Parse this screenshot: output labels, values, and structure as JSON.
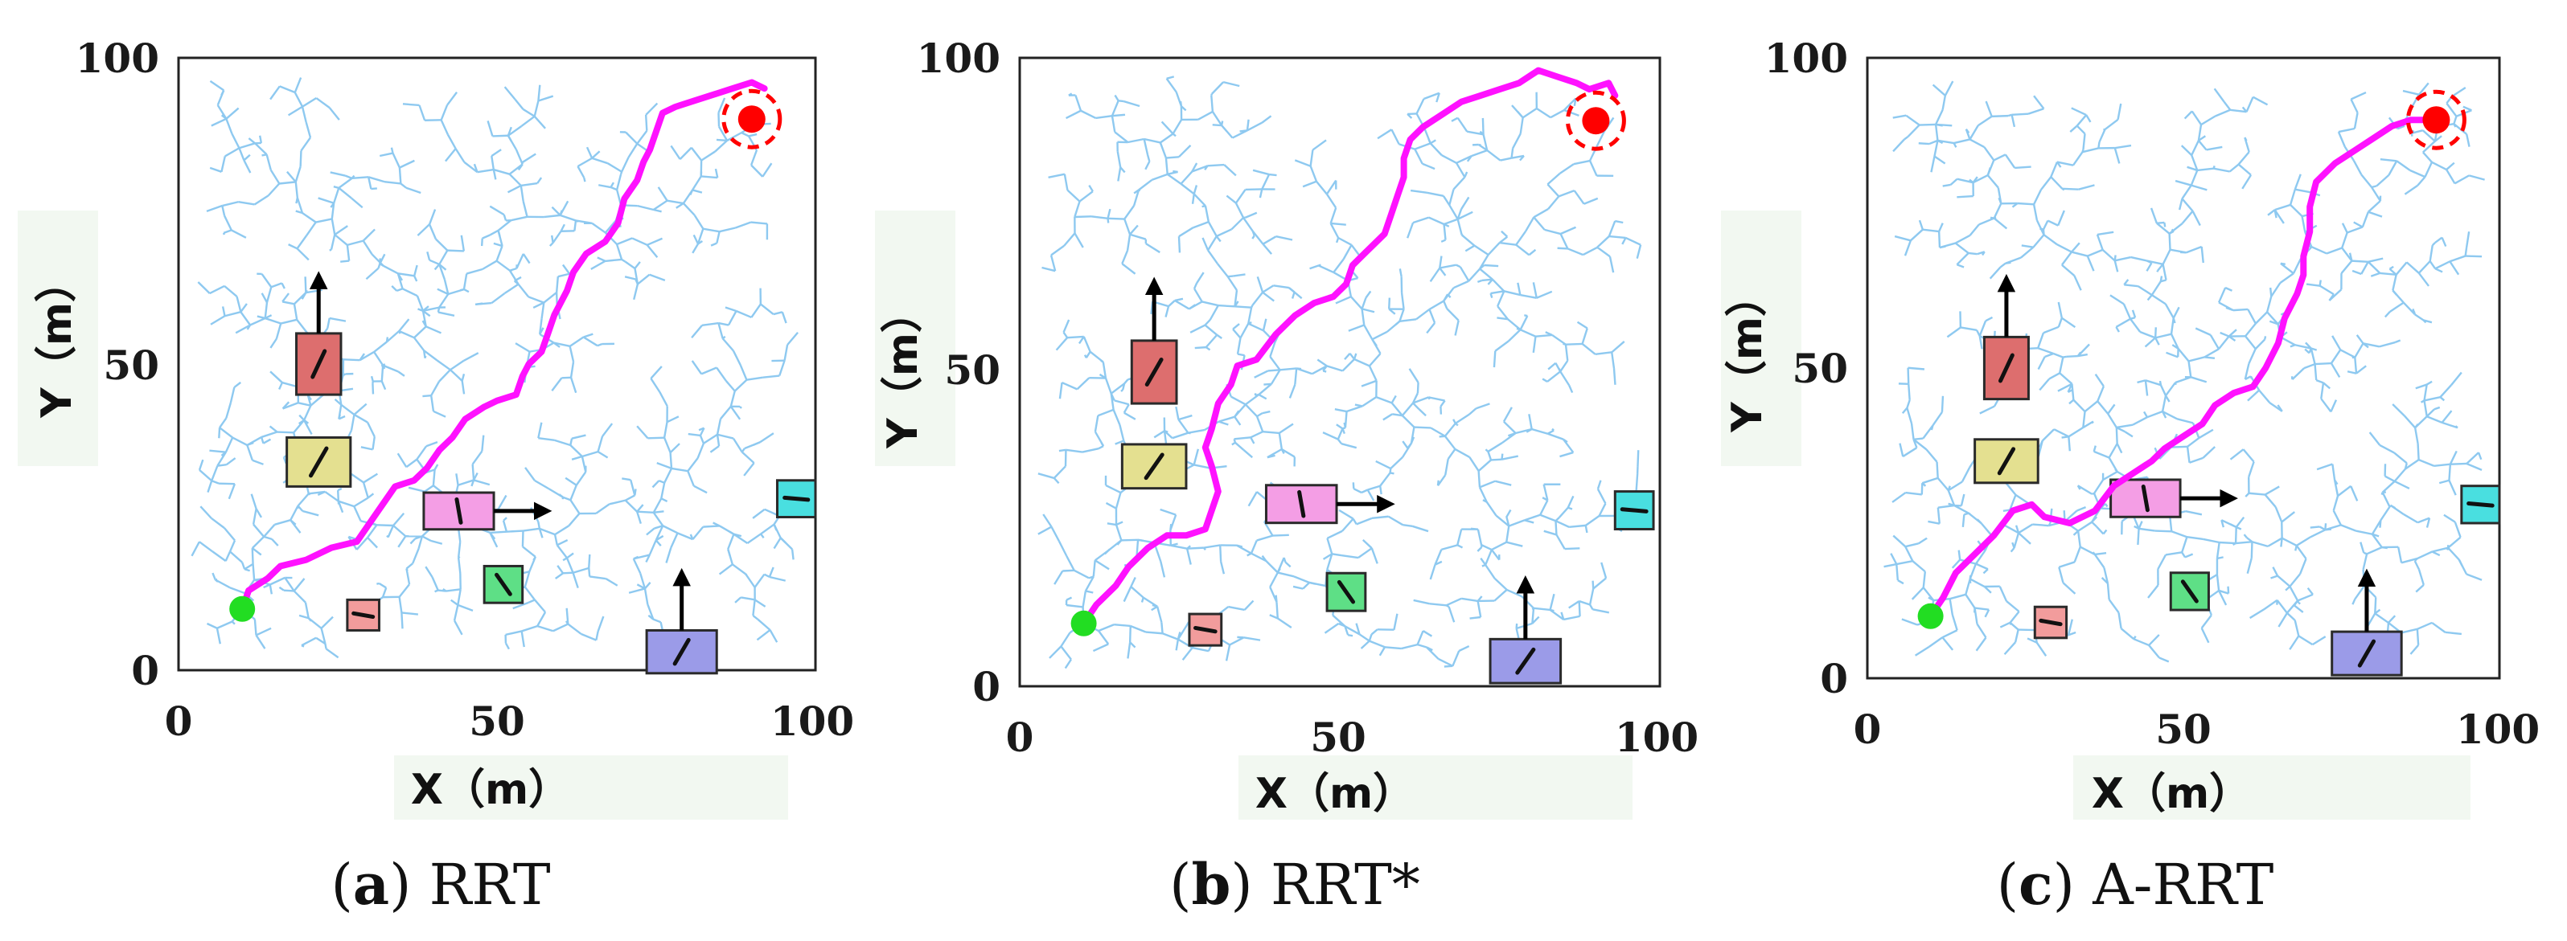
{
  "figure": {
    "colors": {
      "tree": "#8ec9f0",
      "path": "#ff11ff",
      "start": "#22dd22",
      "goal": "#ff0000"
    }
  },
  "chart_data": [
    {
      "type": "scatter",
      "caption_letter": "a",
      "caption_name": "RRT",
      "xlabel": "X（m）",
      "ylabel": "Y（m）",
      "xlim": [
        0,
        100
      ],
      "ylim": [
        0,
        100
      ],
      "xticks": [
        "0",
        "50",
        "100"
      ],
      "yticks": [
        "0",
        "50",
        "100"
      ],
      "start": [
        10,
        10
      ],
      "goal": [
        90,
        90
      ],
      "tree_seed": 7,
      "path": [
        [
          10,
          10
        ],
        [
          11,
          13
        ],
        [
          14,
          15
        ],
        [
          16,
          17
        ],
        [
          20,
          18
        ],
        [
          24,
          20
        ],
        [
          28,
          21
        ],
        [
          30,
          24
        ],
        [
          32,
          27
        ],
        [
          34,
          30
        ],
        [
          37,
          31
        ],
        [
          39,
          33
        ],
        [
          41,
          36
        ],
        [
          43,
          38
        ],
        [
          45,
          41
        ],
        [
          48,
          43
        ],
        [
          50,
          44
        ],
        [
          53,
          45
        ],
        [
          54,
          48
        ],
        [
          55,
          50
        ],
        [
          57,
          52
        ],
        [
          58,
          55
        ],
        [
          59,
          58
        ],
        [
          61,
          62
        ],
        [
          62,
          65
        ],
        [
          64,
          68
        ],
        [
          67,
          70
        ],
        [
          69,
          73
        ],
        [
          70,
          77
        ],
        [
          72,
          80
        ],
        [
          73,
          83
        ],
        [
          74,
          85
        ],
        [
          75,
          88
        ],
        [
          76,
          91
        ],
        [
          78,
          92
        ],
        [
          81,
          93
        ],
        [
          84,
          94
        ],
        [
          87,
          95
        ],
        [
          90,
          96
        ],
        [
          92,
          95
        ]
      ],
      "obstacles": [
        {
          "x": 22,
          "y": 50,
          "w": 7,
          "h": 10,
          "color": "#dd6e6e",
          "heading": 65,
          "arrow": "up"
        },
        {
          "x": 22,
          "y": 34,
          "w": 10,
          "h": 8,
          "color": "#e4e090",
          "heading": 60,
          "arrow": "none"
        },
        {
          "x": 44,
          "y": 26,
          "w": 11,
          "h": 6,
          "color": "#f49ee5",
          "heading": 100,
          "arrow": "right"
        },
        {
          "x": 51,
          "y": 14,
          "w": 6,
          "h": 6,
          "color": "#5edf86",
          "heading": -55,
          "arrow": "none"
        },
        {
          "x": 29,
          "y": 9,
          "w": 5,
          "h": 5,
          "color": "#f29c9c",
          "heading": -10,
          "arrow": "none"
        },
        {
          "x": 79,
          "y": 3,
          "w": 11,
          "h": 7,
          "color": "#9b9be8",
          "heading": 60,
          "arrow": "up"
        },
        {
          "x": 97,
          "y": 28,
          "w": 6,
          "h": 6,
          "color": "#49dfe0",
          "heading": -5,
          "arrow": "none"
        }
      ]
    },
    {
      "type": "scatter",
      "caption_letter": "b",
      "caption_name": "RRT*",
      "xlabel": "X（m）",
      "ylabel": "Y（m）",
      "xlim": [
        0,
        100
      ],
      "ylim": [
        0,
        100
      ],
      "xticks": [
        "0",
        "50",
        "100"
      ],
      "yticks": [
        "0",
        "50",
        "100"
      ],
      "start": [
        10,
        10
      ],
      "goal": [
        90,
        90
      ],
      "tree_seed": 19,
      "path": [
        [
          10,
          10
        ],
        [
          12,
          13
        ],
        [
          15,
          16
        ],
        [
          17,
          19
        ],
        [
          20,
          22
        ],
        [
          23,
          24
        ],
        [
          26,
          24
        ],
        [
          29,
          25
        ],
        [
          30,
          28
        ],
        [
          31,
          31
        ],
        [
          30,
          35
        ],
        [
          29,
          38
        ],
        [
          30,
          41
        ],
        [
          31,
          45
        ],
        [
          33,
          48
        ],
        [
          34,
          51
        ],
        [
          37,
          52
        ],
        [
          40,
          56
        ],
        [
          43,
          59
        ],
        [
          46,
          61
        ],
        [
          49,
          62
        ],
        [
          51,
          64
        ],
        [
          52,
          67
        ],
        [
          54,
          69
        ],
        [
          57,
          72
        ],
        [
          58,
          75
        ],
        [
          59,
          78
        ],
        [
          60,
          81
        ],
        [
          60,
          84
        ],
        [
          61,
          87
        ],
        [
          63,
          89
        ],
        [
          66,
          91
        ],
        [
          69,
          93
        ],
        [
          72,
          94
        ],
        [
          75,
          95
        ],
        [
          78,
          96
        ],
        [
          81,
          98
        ],
        [
          84,
          97
        ],
        [
          87,
          96
        ],
        [
          89,
          95
        ],
        [
          92,
          96
        ],
        [
          93,
          94
        ]
      ],
      "obstacles": [
        {
          "x": 21,
          "y": 50,
          "w": 7,
          "h": 10,
          "color": "#dd6e6e",
          "heading": 60,
          "arrow": "up"
        },
        {
          "x": 21,
          "y": 35,
          "w": 10,
          "h": 7,
          "color": "#e4e090",
          "heading": 55,
          "arrow": "none"
        },
        {
          "x": 44,
          "y": 29,
          "w": 11,
          "h": 6,
          "color": "#f49ee5",
          "heading": 100,
          "arrow": "right"
        },
        {
          "x": 51,
          "y": 15,
          "w": 6,
          "h": 6,
          "color": "#5edf86",
          "heading": -55,
          "arrow": "none"
        },
        {
          "x": 29,
          "y": 9,
          "w": 5,
          "h": 5,
          "color": "#f29c9c",
          "heading": -10,
          "arrow": "none"
        },
        {
          "x": 79,
          "y": 4,
          "w": 11,
          "h": 7,
          "color": "#9b9be8",
          "heading": 55,
          "arrow": "up"
        },
        {
          "x": 96,
          "y": 28,
          "w": 6,
          "h": 6,
          "color": "#49dfe0",
          "heading": -5,
          "arrow": "none"
        }
      ]
    },
    {
      "type": "scatter",
      "caption_letter": "c",
      "caption_name": "A-RRT",
      "xlabel": "X（m）",
      "ylabel": "Y（m）",
      "xlim": [
        0,
        100
      ],
      "ylim": [
        0,
        100
      ],
      "xticks": [
        "0",
        "50",
        "100"
      ],
      "yticks": [
        "0",
        "50",
        "100"
      ],
      "start": [
        10,
        10
      ],
      "goal": [
        90,
        90
      ],
      "tree_seed": 41,
      "path": [
        [
          10,
          10
        ],
        [
          12,
          13
        ],
        [
          14,
          17
        ],
        [
          17,
          20
        ],
        [
          20,
          23
        ],
        [
          23,
          27
        ],
        [
          26,
          28
        ],
        [
          28,
          26
        ],
        [
          32,
          25
        ],
        [
          36,
          27
        ],
        [
          39,
          31
        ],
        [
          42,
          33
        ],
        [
          45,
          35
        ],
        [
          47,
          37
        ],
        [
          50,
          39
        ],
        [
          53,
          41
        ],
        [
          55,
          44
        ],
        [
          58,
          46
        ],
        [
          61,
          47
        ],
        [
          63,
          50
        ],
        [
          65,
          54
        ],
        [
          66,
          58
        ],
        [
          68,
          62
        ],
        [
          69,
          65
        ],
        [
          69,
          68
        ],
        [
          70,
          72
        ],
        [
          70,
          76
        ],
        [
          71,
          80
        ],
        [
          74,
          83
        ],
        [
          77,
          85
        ],
        [
          80,
          87
        ],
        [
          83,
          89
        ],
        [
          86,
          90
        ],
        [
          88,
          90
        ],
        [
          90,
          90
        ]
      ],
      "obstacles": [
        {
          "x": 22,
          "y": 50,
          "w": 7,
          "h": 10,
          "color": "#dd6e6e",
          "heading": 65,
          "arrow": "up"
        },
        {
          "x": 22,
          "y": 35,
          "w": 10,
          "h": 7,
          "color": "#e4e090",
          "heading": 60,
          "arrow": "none"
        },
        {
          "x": 44,
          "y": 29,
          "w": 11,
          "h": 6,
          "color": "#f49ee5",
          "heading": 100,
          "arrow": "right"
        },
        {
          "x": 51,
          "y": 14,
          "w": 6,
          "h": 6,
          "color": "#5edf86",
          "heading": -55,
          "arrow": "none"
        },
        {
          "x": 29,
          "y": 9,
          "w": 5,
          "h": 5,
          "color": "#f29c9c",
          "heading": -10,
          "arrow": "none"
        },
        {
          "x": 79,
          "y": 4,
          "w": 11,
          "h": 7,
          "color": "#9b9be8",
          "heading": 60,
          "arrow": "up"
        },
        {
          "x": 97,
          "y": 28,
          "w": 6,
          "h": 6,
          "color": "#49dfe0",
          "heading": -5,
          "arrow": "none"
        }
      ]
    }
  ]
}
